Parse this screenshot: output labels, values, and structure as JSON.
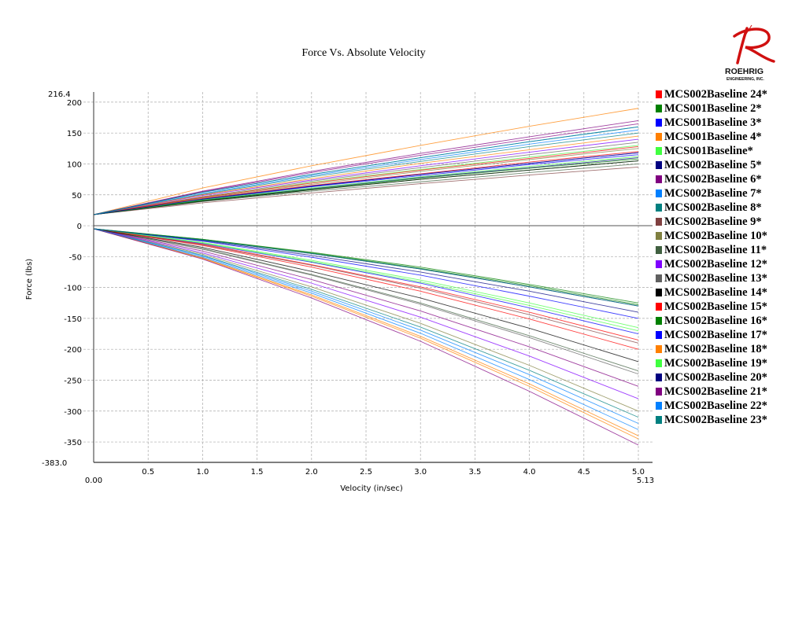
{
  "logo": {
    "name": "ROEHRIG",
    "sub": "ENGINEERING, INC."
  },
  "chart_data": {
    "type": "line",
    "title": "Force Vs. Absolute Velocity",
    "xlabel": "Velocity (in/sec)",
    "ylabel": "Force (lbs)",
    "xlim": [
      0.0,
      5.13
    ],
    "ylim": [
      -383.0,
      216.4
    ],
    "xlim_labels": [
      "0.00",
      "5.13"
    ],
    "ylim_labels": [
      "216.4",
      "-383.0"
    ],
    "xticks": [
      "0.5",
      "1.0",
      "1.5",
      "2.0",
      "2.5",
      "3.0",
      "3.5",
      "4.0",
      "4.5",
      "5.0"
    ],
    "yticks": [
      "200",
      "150",
      "100",
      "50",
      "0",
      "-50",
      "-100",
      "-150",
      "-200",
      "-250",
      "-300",
      "-350"
    ],
    "grid": true,
    "legend_position": "right",
    "x": [
      0,
      1,
      2,
      3,
      4,
      5
    ],
    "series": [
      {
        "name": "MCS002Baseline 24*",
        "color": "#ff0000",
        "rebound": [
          18,
          44,
          65,
          84,
          103,
          120
        ],
        "compression": [
          -5,
          -32,
          -67,
          -106,
          -151,
          -200
        ]
      },
      {
        "name": "MCS001Baseline 2*",
        "color": "#008000",
        "rebound": [
          18,
          40,
          58,
          75,
          90,
          105
        ],
        "compression": [
          -5,
          -22,
          -43,
          -67,
          -95,
          -125
        ]
      },
      {
        "name": "MCS001Baseline 3*",
        "color": "#0000ff",
        "rebound": [
          18,
          42,
          63,
          81,
          99,
          115
        ],
        "compression": [
          -5,
          -29,
          -59,
          -93,
          -133,
          -175
        ]
      },
      {
        "name": "MCS001Baseline 4*",
        "color": "#ff8000",
        "rebound": [
          18,
          61,
          97,
          130,
          161,
          190
        ],
        "compression": [
          -5,
          -52,
          -112,
          -179,
          -256,
          -340
        ]
      },
      {
        "name": "MCS001Baseline*",
        "color": "#40ff40",
        "rebound": [
          18,
          46,
          70,
          91,
          111,
          130
        ],
        "compression": [
          -5,
          -28,
          -58,
          -91,
          -129,
          -170
        ]
      },
      {
        "name": "MCS002Baseline 5*",
        "color": "#000080",
        "rebound": [
          18,
          41,
          60,
          78,
          94,
          110
        ],
        "compression": [
          -5,
          -23,
          -45,
          -70,
          -99,
          -130
        ]
      },
      {
        "name": "MCS002Baseline 6*",
        "color": "#800080",
        "rebound": [
          18,
          56,
          88,
          117,
          144,
          170
        ],
        "compression": [
          -5,
          -41,
          -87,
          -138,
          -196,
          -260
        ]
      },
      {
        "name": "MCS002Baseline 7*",
        "color": "#0080ff",
        "rebound": [
          18,
          54,
          83,
          110,
          136,
          160
        ],
        "compression": [
          -5,
          -51,
          -109,
          -174,
          -249,
          -330
        ]
      },
      {
        "name": "MCS002Baseline 8*",
        "color": "#008080",
        "rebound": [
          18,
          51,
          79,
          104,
          128,
          150
        ],
        "compression": [
          -5,
          -48,
          -103,
          -164,
          -234,
          -310
        ]
      },
      {
        "name": "MCS002Baseline 9*",
        "color": "#804040",
        "rebound": [
          18,
          37,
          53,
          68,
          82,
          95
        ],
        "compression": [
          -5,
          -31,
          -64,
          -101,
          -144,
          -190
        ]
      },
      {
        "name": "MCS002Baseline 10*",
        "color": "#808040",
        "rebound": [
          18,
          45,
          67,
          88,
          107,
          125
        ],
        "compression": [
          -5,
          -46,
          -99,
          -158,
          -226,
          -300
        ]
      },
      {
        "name": "MCS002Baseline 11*",
        "color": "#406040",
        "rebound": [
          18,
          39,
          56,
          71,
          86,
          100
        ],
        "compression": [
          -5,
          -37,
          -79,
          -125,
          -178,
          -235
        ]
      },
      {
        "name": "MCS002Baseline 12*",
        "color": "#8000ff",
        "rebound": [
          18,
          49,
          74,
          97,
          119,
          140
        ],
        "compression": [
          -5,
          -44,
          -93,
          -148,
          -211,
          -280
        ]
      },
      {
        "name": "MCS002Baseline 13*",
        "color": "#606060",
        "rebound": [
          18,
          47,
          72,
          94,
          115,
          135
        ],
        "compression": [
          -5,
          -38,
          -80,
          -127,
          -181,
          -240
        ]
      },
      {
        "name": "MCS002Baseline 14*",
        "color": "#000000",
        "rebound": [
          18,
          40,
          58,
          75,
          90,
          105
        ],
        "compression": [
          -5,
          -35,
          -74,
          -117,
          -166,
          -220
        ]
      },
      {
        "name": "MCS002Baseline 15*",
        "color": "#ff0000",
        "rebound": [
          18,
          46,
          69,
          90,
          109,
          128
        ],
        "compression": [
          -5,
          -30,
          -63,
          -99,
          -140,
          -185
        ]
      },
      {
        "name": "MCS002Baseline 16*",
        "color": "#008000",
        "rebound": [
          18,
          41,
          59,
          77,
          93,
          108
        ],
        "compression": [
          -5,
          -22,
          -44,
          -69,
          -97,
          -128
        ]
      },
      {
        "name": "MCS002Baseline 17*",
        "color": "#0000ff",
        "rebound": [
          18,
          43,
          64,
          83,
          101,
          118
        ],
        "compression": [
          -5,
          -25,
          -51,
          -80,
          -114,
          -150
        ]
      },
      {
        "name": "MCS002Baseline 18*",
        "color": "#ff8000",
        "rebound": [
          18,
          50,
          76,
          101,
          123,
          145
        ],
        "compression": [
          -5,
          -53,
          -114,
          -182,
          -260,
          -345
        ]
      },
      {
        "name": "MCS002Baseline 19*",
        "color": "#40ff40",
        "rebound": [
          18,
          42,
          61,
          79,
          96,
          112
        ],
        "compression": [
          -5,
          -27,
          -56,
          -88,
          -125,
          -165
        ]
      },
      {
        "name": "MCS002Baseline 20*",
        "color": "#000080",
        "rebound": [
          18,
          43,
          64,
          83,
          101,
          118
        ],
        "compression": [
          -5,
          -24,
          -48,
          -75,
          -106,
          -140
        ]
      },
      {
        "name": "MCS002Baseline 21*",
        "color": "#800080",
        "rebound": [
          18,
          55,
          86,
          114,
          140,
          165
        ],
        "compression": [
          -5,
          -54,
          -117,
          -187,
          -268,
          -355
        ]
      },
      {
        "name": "MCS002Baseline 22*",
        "color": "#0080ff",
        "rebound": [
          18,
          52,
          81,
          107,
          132,
          155
        ],
        "compression": [
          -5,
          -49,
          -106,
          -169,
          -241,
          -320
        ]
      },
      {
        "name": "MCS002Baseline 23*",
        "color": "#008080",
        "rebound": [
          18,
          54,
          83,
          110,
          136,
          160
        ],
        "compression": [
          -5,
          -23,
          -45,
          -70,
          -99,
          -130
        ]
      }
    ]
  }
}
